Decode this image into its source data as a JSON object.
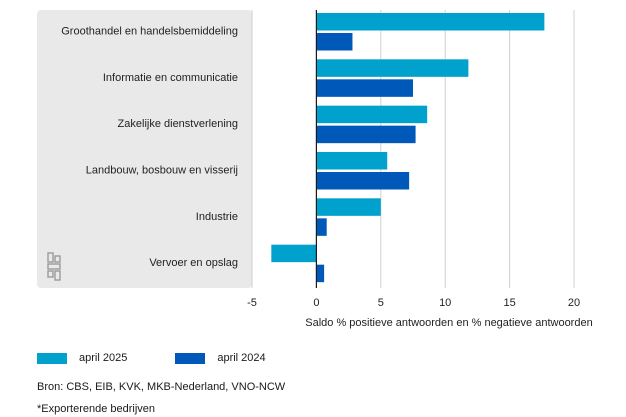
{
  "chart_data": {
    "type": "bar",
    "orientation": "horizontal",
    "categories": [
      "Groothandel en handelsbemiddeling",
      "Informatie en communicatie",
      "Zakelijke dienstverlening",
      "Landbouw, bosbouw en visserij",
      "Industrie",
      "Vervoer en opslag"
    ],
    "series": [
      {
        "name": "april 2025",
        "color": "#00a1cd",
        "values": [
          17.7,
          11.8,
          8.6,
          5.5,
          5.0,
          -3.5
        ]
      },
      {
        "name": "april 2024",
        "color": "#0058b8",
        "values": [
          2.8,
          7.5,
          7.7,
          7.2,
          0.8,
          0.6
        ]
      }
    ],
    "xlim": [
      -5,
      20
    ],
    "xticks": [
      "-5",
      "0",
      "5",
      "10",
      "15",
      "20"
    ],
    "xlabel": "Saldo % positieve antwoorden en % negatieve antwoorden",
    "ylabel": "",
    "title": "",
    "grid": "vertical",
    "legend_position": "bottom-left"
  },
  "source": "Bron: CBS, EIB, KVK, MKB-Nederland, VNO-NCW",
  "footnote": "*Exporterende bedrijven",
  "logo_icon": "cbs-logo-icon",
  "colors": {
    "panel": "#e9e9e9",
    "grid": "#d0d0d0",
    "axis": "#1a1a1a"
  }
}
